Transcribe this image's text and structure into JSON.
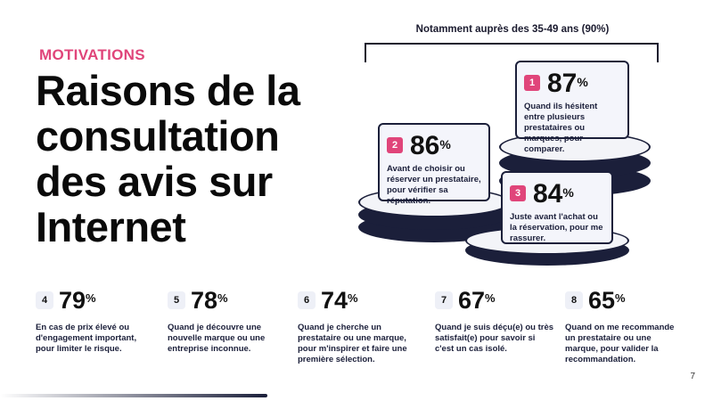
{
  "kicker": "MOTIVATIONS",
  "title": "Raisons de la consultation des avis sur Internet",
  "bracket_label": "Notamment auprès des 35-49 ans (90%)",
  "top_stats": [
    {
      "num": "1",
      "pct": "87",
      "unit": "%",
      "desc": "Quand ils hésitent entre plusieurs prestataires ou marques, pour comparer."
    },
    {
      "num": "2",
      "pct": "86",
      "unit": "%",
      "desc": "Avant de choisir ou réserver un prestataire, pour vérifier sa réputation."
    },
    {
      "num": "3",
      "pct": "84",
      "unit": "%",
      "desc": "Juste avant l'achat ou la réservation, pour me rassurer."
    }
  ],
  "bottom_stats": [
    {
      "num": "4",
      "pct": "79",
      "unit": "%",
      "desc": "En cas de prix élevé ou d'engagement important, pour limiter le risque."
    },
    {
      "num": "5",
      "pct": "78",
      "unit": "%",
      "desc": "Quand je découvre une nouvelle marque ou une entreprise inconnue."
    },
    {
      "num": "6",
      "pct": "74",
      "unit": "%",
      "desc": "Quand je cherche un prestataire ou une marque, pour m'inspirer et faire une première sélection."
    },
    {
      "num": "7",
      "pct": "67",
      "unit": "%",
      "desc": "Quand je suis déçu(e) ou très satisfait(e) pour savoir si c'est un cas isolé."
    },
    {
      "num": "8",
      "pct": "65",
      "unit": "%",
      "desc": "Quand on me recommande un prestataire ou une marque, pour valider la recommandation."
    }
  ],
  "page_number": "7",
  "colors": {
    "accent": "#e0457a",
    "navy": "#1b1f3a"
  }
}
